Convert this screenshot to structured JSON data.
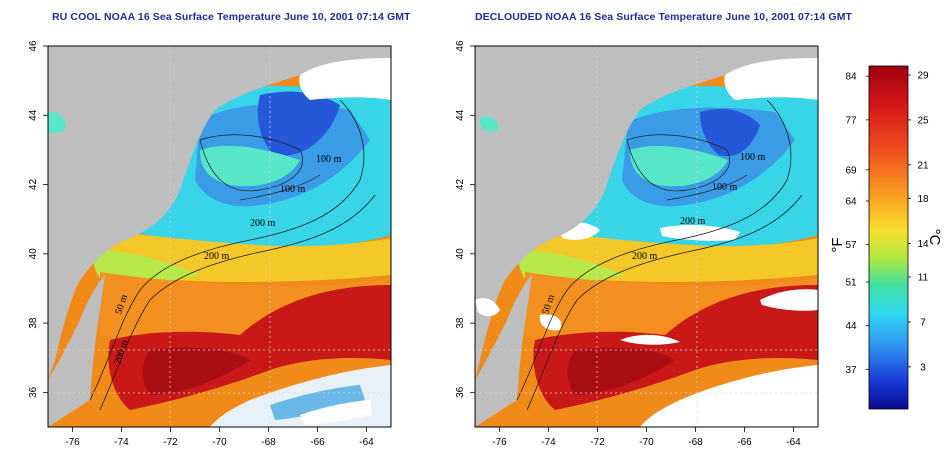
{
  "panels": [
    {
      "title": "RU COOL NOAA 16 Sea Surface Temperature June 10, 2001 07:14 GMT",
      "variant": "raw",
      "contour_labels": [
        "100 m",
        "100 m",
        "200 m",
        "200 m",
        "50 m",
        "200 m"
      ]
    },
    {
      "title": "DECLOUDED NOAA 16 Sea Surface Temperature June 10, 2001 07:14 GMT",
      "variant": "declouded",
      "contour_labels": [
        "100 m",
        "100 m",
        "200 m",
        "200 m",
        "50 m"
      ]
    }
  ],
  "axes": {
    "lon_ticks": [
      "-76",
      "-74",
      "-72",
      "-70",
      "-68",
      "-66",
      "-64"
    ],
    "lat_ticks": [
      "46",
      "44",
      "42",
      "40",
      "38",
      "36"
    ]
  },
  "colorbar": {
    "fahrenheit_unit": "°F",
    "celsius_unit": "°C",
    "fahrenheit_ticks": [
      "84",
      "77",
      "69",
      "64",
      "57",
      "51",
      "44",
      "37"
    ],
    "celsius_ticks": [
      "29",
      "25",
      "21",
      "18",
      "14",
      "11",
      "7",
      "3"
    ]
  },
  "colors": {
    "land": "#bebebe",
    "cloud": "#ffffff",
    "title": "#1c2f9a"
  }
}
